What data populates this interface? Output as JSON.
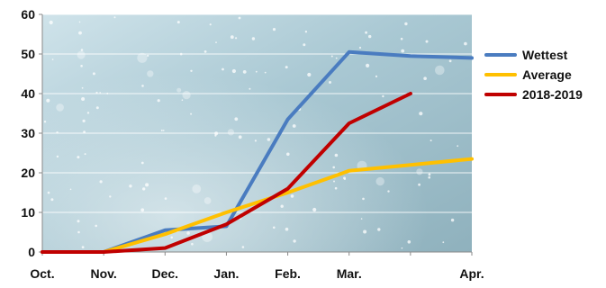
{
  "chart_data": {
    "type": "line",
    "title": "",
    "xlabel": "",
    "ylabel": "",
    "categories": [
      "Oct.",
      "Nov.",
      "Dec.",
      "Jan.",
      "Feb.",
      "Mar.",
      "",
      "Apr."
    ],
    "ylim": [
      0,
      60
    ],
    "yticks": [
      0,
      10,
      20,
      30,
      40,
      50,
      60
    ],
    "grid": true,
    "legend_position": "right",
    "series": [
      {
        "name": "Wettest",
        "color": "#4a7cc0",
        "values": [
          0,
          0,
          5.5,
          6.5,
          33.5,
          50.5,
          49.5,
          49
        ]
      },
      {
        "name": "Average",
        "color": "#ffc000",
        "values": [
          0,
          0,
          4.5,
          10,
          15,
          20.5,
          22,
          23.5
        ]
      },
      {
        "name": "2018-2019",
        "color": "#c00000",
        "values": [
          0,
          0,
          1,
          7,
          16,
          32.5,
          40,
          null
        ]
      }
    ]
  }
}
